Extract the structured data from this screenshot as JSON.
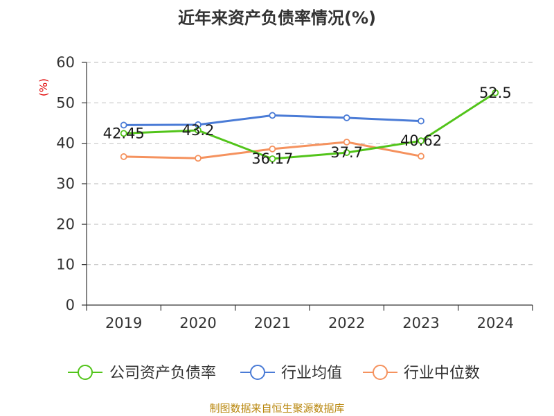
{
  "title": "近年来资产负债率情况(%)",
  "source": "制图数据来自恒生聚源数据库",
  "chart_data": {
    "type": "line",
    "title": "近年来资产负债率情况(%)",
    "ylabel": "(%)",
    "xlabel": "",
    "categories": [
      "2019",
      "2020",
      "2021",
      "2022",
      "2023",
      "2024"
    ],
    "ylim": [
      0,
      60
    ],
    "yticks": [
      0,
      10,
      20,
      30,
      40,
      50,
      60
    ],
    "grid": true,
    "legend_position": "bottom",
    "series": [
      {
        "name": "公司资产负债率",
        "color": "#52c41a",
        "values": [
          42.45,
          43.2,
          36.17,
          37.7,
          40.62,
          52.5
        ],
        "labels": [
          "42.45",
          "43.2",
          "36.17",
          "37.7",
          "40.62",
          "52.5"
        ]
      },
      {
        "name": "行业均值",
        "color": "#4a7bd6",
        "values": [
          44.5,
          44.6,
          46.9,
          46.3,
          45.5,
          null
        ]
      },
      {
        "name": "行业中位数",
        "color": "#f5925e",
        "values": [
          36.7,
          36.3,
          38.6,
          40.3,
          36.8,
          null
        ]
      }
    ]
  }
}
